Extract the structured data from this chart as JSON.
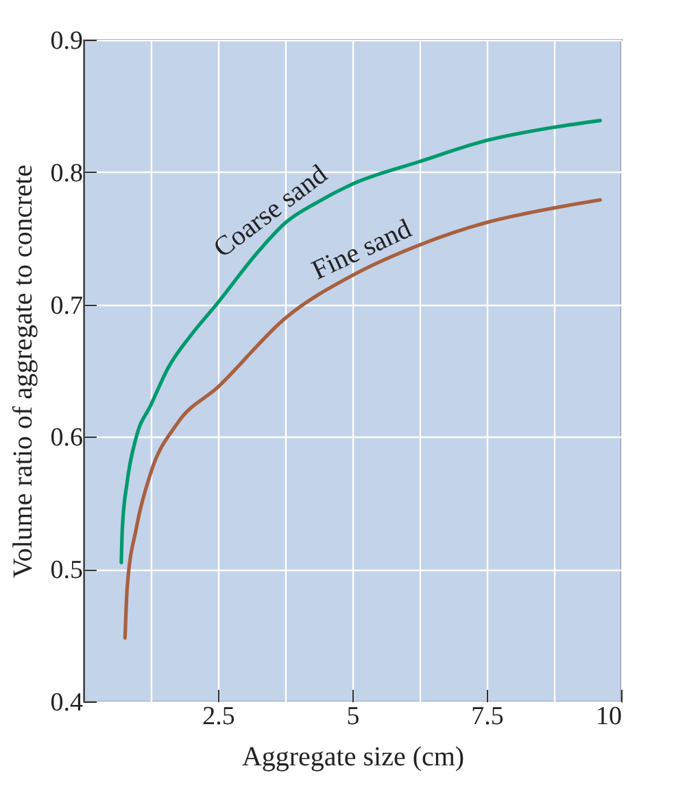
{
  "chart_data": {
    "type": "line",
    "xlabel": "Aggregate size (cm)",
    "ylabel": "Volume ratio of aggregate to concrete",
    "xlim": [
      0,
      10
    ],
    "xticks": [
      {
        "value": 1.25,
        "label": null
      },
      2.5,
      {
        "value": 3.75,
        "label": null
      },
      5,
      {
        "value": 6.25,
        "label": null
      },
      7.5,
      {
        "value": 8.75,
        "label": null
      },
      10
    ],
    "ylim": [
      0.4,
      0.9
    ],
    "yticks": [
      0.4,
      0.5,
      0.6,
      0.7,
      0.8,
      0.9
    ],
    "grid": true,
    "legend": false,
    "marker": "none",
    "line_style": "solid",
    "series": [
      {
        "name": "Coarse sand",
        "color": "#009a6e",
        "x": [
          0.7,
          0.72,
          0.81,
          0.98,
          1.25,
          1.57,
          2.0,
          2.47,
          3.27,
          3.76,
          4.38,
          5.0,
          6.25,
          7.5,
          8.76,
          9.61
        ],
        "values": [
          0.505,
          0.531,
          0.566,
          0.6,
          0.624,
          0.652,
          0.677,
          0.7,
          0.741,
          0.762,
          0.778,
          0.791,
          0.808,
          0.824,
          0.834,
          0.839
        ]
      },
      {
        "name": "Fine sand",
        "color": "#a8603f",
        "x": [
          0.77,
          0.81,
          0.98,
          1.25,
          1.74,
          2.51,
          3.76,
          5.0,
          6.25,
          7.5,
          8.76,
          9.61
        ],
        "values": [
          0.448,
          0.486,
          0.531,
          0.573,
          0.61,
          0.638,
          0.69,
          0.722,
          0.745,
          0.762,
          0.773,
          0.779
        ]
      }
    ]
  }
}
